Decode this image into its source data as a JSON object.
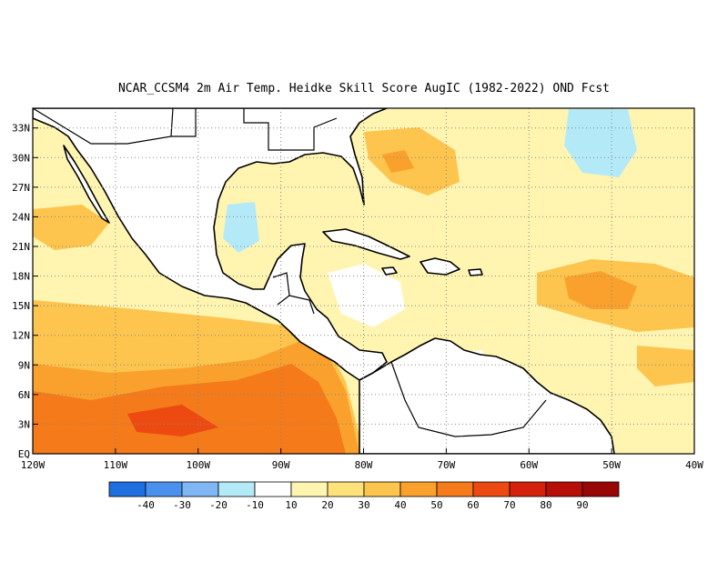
{
  "title": "NCAR_CCSM4  2m Air Temp. Heidke Skill Score AugIC (1982-2022) OND Fcst",
  "map": {
    "lon_range": [
      -120,
      -40
    ],
    "lat_range": [
      0,
      35
    ],
    "lat_ticks": [
      "EQ",
      "3N",
      "6N",
      "9N",
      "12N",
      "15N",
      "18N",
      "21N",
      "24N",
      "27N",
      "30N",
      "33N"
    ],
    "lon_ticks": [
      "120W",
      "110W",
      "100W",
      "90W",
      "80W",
      "70W",
      "60W",
      "50W",
      "40W"
    ],
    "grid": "dotted"
  },
  "colorbar": {
    "labels": [
      "-40",
      "-30",
      "-20",
      "-10",
      "10",
      "20",
      "30",
      "40",
      "50",
      "60",
      "70",
      "80",
      "90"
    ],
    "colors": [
      "#1e6fe0",
      "#4a91ee",
      "#7fb6f4",
      "#b4eaf8",
      "#ffffff",
      "#fff5b0",
      "#ffe27a",
      "#fdc44e",
      "#f9a12c",
      "#f47a1a",
      "#ed4a12",
      "#d5200b",
      "#b80e08",
      "#980605"
    ]
  },
  "land_color": "#ffffff",
  "coast_color": "#000000"
}
